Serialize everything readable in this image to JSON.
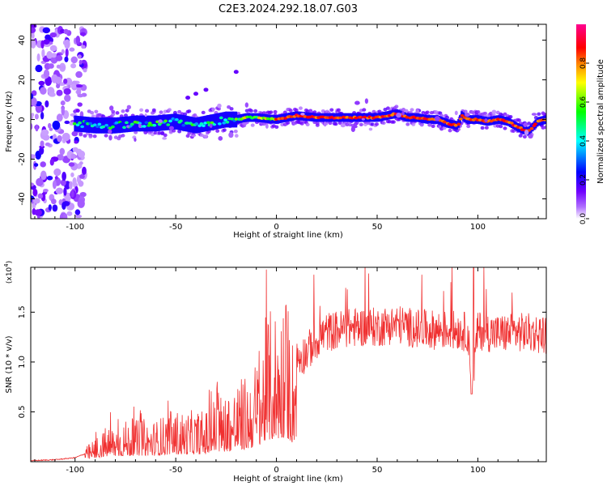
{
  "figure": {
    "title": "C2E3.2024.292.18.07.G03"
  },
  "chart_data": [
    {
      "type": "heatmap",
      "title": "C2E3.2024.292.18.07.G03",
      "xlabel": "Height of straight line (km)",
      "ylabel": "Frequency (Hz)",
      "xlim": [
        -122,
        134
      ],
      "ylim": [
        -50,
        48
      ],
      "xticks": [
        -100,
        -50,
        0,
        50,
        100
      ],
      "yticks": [
        -40,
        -20,
        0,
        20,
        40
      ],
      "colorbar": {
        "label": "Normalized spectral amplitude",
        "range": [
          0,
          1
        ],
        "ticks": [
          0.0,
          0.2,
          0.4,
          0.6,
          0.8
        ],
        "colormap": "rainbow (white at 0, purple, blue, cyan, green, yellow, orange, red, magenta at 1)",
        "colors": [
          "#ffffff",
          "#8000ff",
          "#0000ff",
          "#00ffff",
          "#00ff00",
          "#ffff00",
          "#ff8000",
          "#ff0000",
          "#ff00a0"
        ]
      },
      "series": [
        {
          "description": "frequency ridge",
          "x": [
            -100,
            -90,
            -80,
            -70,
            -60,
            -50,
            -45,
            -40,
            -35,
            -30,
            -25,
            -20,
            -15,
            -10,
            0,
            10,
            20,
            30,
            40,
            50,
            55,
            60,
            65,
            70,
            75,
            80,
            85,
            90,
            92,
            95,
            100,
            105,
            110,
            115,
            120,
            125,
            130,
            134
          ],
          "y": [
            -2,
            -3,
            -3,
            -2,
            -2,
            -1,
            -2,
            -3,
            -2,
            -1,
            0,
            0,
            1,
            1,
            0,
            2,
            1,
            1,
            1,
            1,
            2,
            3,
            1,
            1,
            0,
            0,
            -2,
            -3,
            2,
            0,
            0,
            -1,
            0,
            -1,
            -4,
            -6,
            -1,
            0
          ]
        }
      ],
      "grid": false
    },
    {
      "type": "line",
      "xlabel": "Height of straight line (km)",
      "ylabel": "SNR (10 * v/v)",
      "scale_label": "(x10",
      "scale_exponent": "4",
      "scale_close": ")",
      "xlim": [
        -122,
        134
      ],
      "ylim": [
        0,
        1.95
      ],
      "xticks": [
        -100,
        -50,
        0,
        50,
        100
      ],
      "yticks": [
        0.5,
        1.0,
        1.5
      ],
      "ytick_labels": [
        "0.5",
        "1.0",
        "1.5"
      ],
      "color": "#f03030",
      "series": [
        {
          "x": [
            -122,
            -110,
            -100,
            -95,
            -90,
            -85,
            -80,
            -75,
            -70,
            -65,
            -60,
            -55,
            -50,
            -45,
            -40,
            -35,
            -30,
            -25,
            -20,
            -15,
            -10,
            -5,
            0,
            5,
            8,
            10,
            15,
            20,
            25,
            30,
            40,
            50,
            60,
            70,
            80,
            90,
            95,
            97,
            100,
            110,
            120,
            134
          ],
          "y": [
            0.01,
            0.02,
            0.04,
            0.08,
            0.14,
            0.2,
            0.22,
            0.24,
            0.24,
            0.25,
            0.24,
            0.28,
            0.3,
            0.29,
            0.3,
            0.3,
            0.4,
            0.41,
            0.47,
            0.5,
            0.6,
            0.85,
            0.92,
            0.98,
            0.75,
            1.02,
            1.1,
            1.22,
            1.3,
            1.32,
            1.35,
            1.35,
            1.38,
            1.33,
            1.32,
            1.32,
            1.3,
            0.75,
            1.32,
            1.28,
            1.3,
            1.28
          ]
        }
      ],
      "grid": false
    }
  ]
}
